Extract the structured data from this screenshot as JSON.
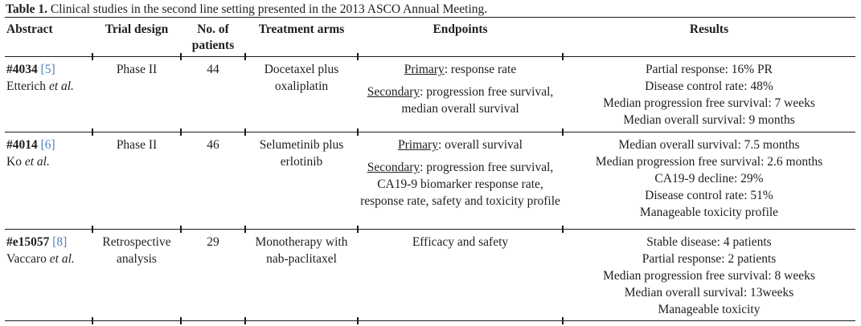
{
  "title": {
    "label": "Table 1.",
    "text": "Clinical studies in the second line setting presented in the 2013 ASCO Annual Meeting."
  },
  "columns": {
    "abstract": "Abstract",
    "trial_design": "Trial design",
    "patients": "No. of patients",
    "treatment": "Treatment arms",
    "endpoints": "Endpoints",
    "results": "Results"
  },
  "rows": [
    {
      "abstract_id": "#4034",
      "abstract_ref": "[5]",
      "author": "Etterich",
      "etal": "et al.",
      "trial_design": "Phase II",
      "patients": "44",
      "treatment": "Docetaxel plus oxaliplatin",
      "endpoints": [
        {
          "label": "Primary",
          "text": ": response rate"
        },
        {
          "label": "Secondary",
          "text": ": progression free survival, median overall survival"
        }
      ],
      "results": [
        "Partial response: 16% PR",
        "Disease control rate: 48%",
        "Median progression free survival: 7 weeks",
        "Median overall survival: 9 months"
      ]
    },
    {
      "abstract_id": "#4014",
      "abstract_ref": "[6]",
      "author": "Ko",
      "etal": "et al.",
      "trial_design": "Phase II",
      "patients": "46",
      "treatment": "Selumetinib plus erlotinib",
      "endpoints": [
        {
          "label": "Primary",
          "text": ": overall survival"
        },
        {
          "label": "Secondary",
          "text": ": progression free survival, CA19-9 biomarker response rate, response rate, safety and toxicity profile"
        }
      ],
      "results": [
        "Median overall survival: 7.5 months",
        "Median progression free survival: 2.6 months",
        "CA19-9 decline: 29%",
        "Disease control rate: 51%",
        "Manageable toxicity profile"
      ]
    },
    {
      "abstract_id": "#e15057",
      "abstract_ref": "[8]",
      "author": "Vaccaro",
      "etal": "et al.",
      "trial_design": "Retrospective analysis",
      "patients": "29",
      "treatment": "Monotherapy with nab-paclitaxel",
      "endpoints": [
        {
          "label": "",
          "text": "Efficacy and safety"
        }
      ],
      "results": [
        "Stable disease: 4 patients",
        "Partial response: 2 patients",
        "Median progression free survival: 8 weeks",
        "Median overall survival: 13weeks",
        "Manageable toxicity"
      ]
    }
  ],
  "colors": {
    "text": "#1e1e1e",
    "citation_link": "#4f81bd",
    "rule": "#1a1a1a"
  }
}
